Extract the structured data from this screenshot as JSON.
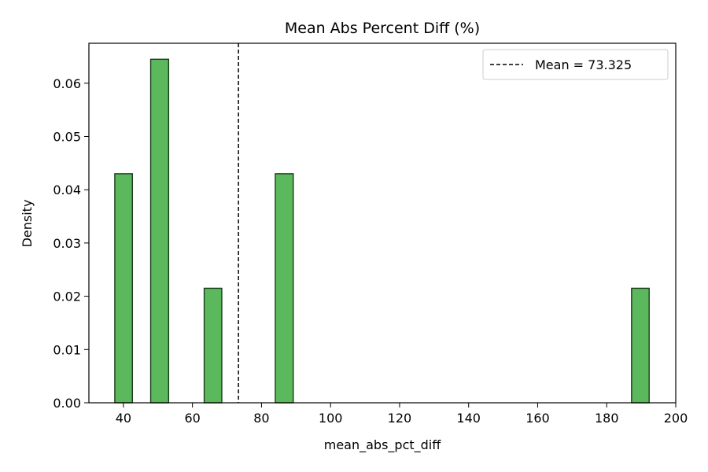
{
  "chart_data": {
    "type": "bar",
    "title": "Mean Abs Percent Diff (%)",
    "xlabel": "mean_abs_pct_diff",
    "ylabel": "Density",
    "xlim": [
      30,
      200
    ],
    "ylim": [
      0,
      0.0675
    ],
    "xticks": [
      40,
      60,
      80,
      100,
      120,
      140,
      160,
      180,
      200
    ],
    "yticks": [
      "0.00",
      "0.01",
      "0.02",
      "0.03",
      "0.04",
      "0.05",
      "0.06"
    ],
    "ytick_values": [
      0,
      0.01,
      0.02,
      0.03,
      0.04,
      0.05,
      0.06
    ],
    "bins": [
      {
        "x0": 37.5,
        "x1": 42.6,
        "density": 0.043
      },
      {
        "x0": 47.9,
        "x1": 53.1,
        "density": 0.0645
      },
      {
        "x0": 63.4,
        "x1": 68.5,
        "density": 0.0215
      },
      {
        "x0": 84.0,
        "x1": 89.2,
        "density": 0.043
      },
      {
        "x0": 187.2,
        "x1": 192.3,
        "density": 0.0215
      }
    ],
    "mean_line": {
      "value": 73.325,
      "label": "Mean = 73.325",
      "style": "dashed",
      "color": "#000000"
    },
    "bar_color": "#5cb85c",
    "bar_edge_color": "#1a3a1a",
    "legend_position": "top-right",
    "grid": false
  }
}
